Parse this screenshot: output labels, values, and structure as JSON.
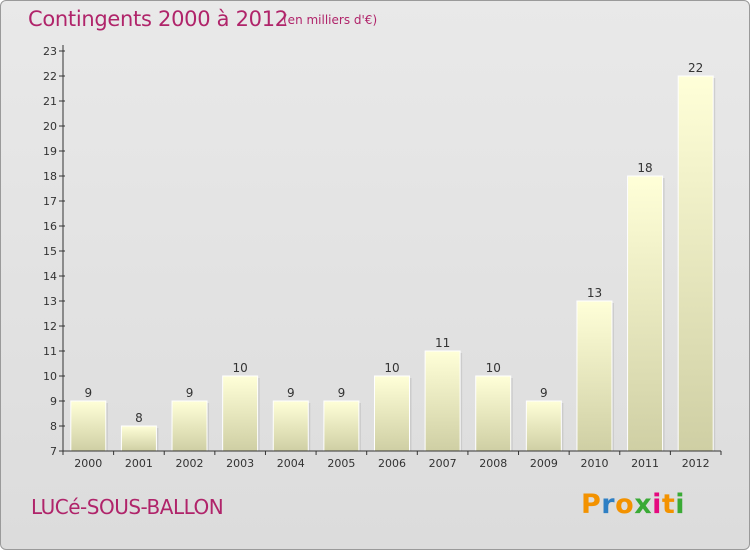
{
  "header": {
    "title": "Contingents 2000 à 2012",
    "subtitle": "(en milliers d'€)"
  },
  "footer": {
    "commune": "LUCé-SOUS-BALLON",
    "logo": [
      "P",
      "r",
      "o",
      "x",
      "i",
      "t",
      "i"
    ],
    "logo_colors": [
      "#f39200",
      "#2e7fc4",
      "#f39200",
      "#3aaa35",
      "#e5097f",
      "#f39200",
      "#3aaa35"
    ]
  },
  "colors": {
    "bar_top": "#ffffd8",
    "bar_bottom": "#cfcfa4",
    "axis": "#333333",
    "accent": "#b0246a"
  },
  "chart_data": {
    "type": "bar",
    "categories": [
      "2000",
      "2001",
      "2002",
      "2003",
      "2004",
      "2005",
      "2006",
      "2007",
      "2008",
      "2009",
      "2010",
      "2011",
      "2012"
    ],
    "values": [
      9,
      8,
      9,
      10,
      9,
      9,
      10,
      11,
      10,
      9,
      13,
      18,
      22
    ],
    "title": "Contingents 2000 à 2012",
    "subtitle": "(en milliers d'€)",
    "xlabel": "",
    "ylabel": "",
    "ylim": [
      7,
      23
    ],
    "yticks": [
      7,
      8,
      9,
      10,
      11,
      12,
      13,
      14,
      15,
      16,
      17,
      18,
      19,
      20,
      21,
      22,
      23
    ],
    "grid": false,
    "legend": "none"
  }
}
